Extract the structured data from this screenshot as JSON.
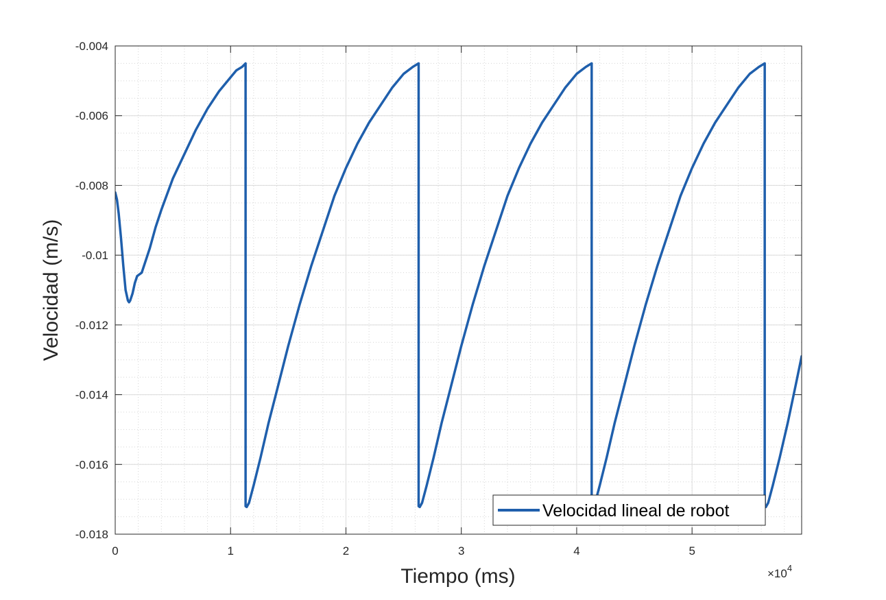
{
  "chart_data": {
    "type": "line",
    "title": "",
    "xlabel": "Tiempo (ms)",
    "ylabel": "Velocidad (m/s)",
    "x_exponent": {
      "base": "×10",
      "power": "4"
    },
    "xlim": [
      0,
      59500
    ],
    "ylim": [
      -0.018,
      -0.004
    ],
    "x_ticks": [
      0,
      10000,
      20000,
      30000,
      40000,
      50000
    ],
    "x_tick_labels": [
      "0",
      "1",
      "2",
      "3",
      "4",
      "5"
    ],
    "y_ticks": [
      -0.018,
      -0.016,
      -0.014,
      -0.012,
      -0.01,
      -0.008,
      -0.006,
      -0.004
    ],
    "y_tick_labels": [
      "-0.018",
      "-0.016",
      "-0.014",
      "-0.012",
      "-0.01",
      "-0.008",
      "-0.006",
      "-0.004"
    ],
    "grid": true,
    "minor_grid": true,
    "legend": {
      "position": "bottom-right",
      "entries": [
        "Velocidad lineal de robot"
      ]
    },
    "series": [
      {
        "name": "Velocidad lineal de robot",
        "color": "#1f5fac",
        "x": [
          0,
          150,
          300,
          500,
          700,
          900,
          1100,
          1200,
          1300,
          1500,
          1700,
          1900,
          2100,
          2300,
          2600,
          3000,
          3500,
          4000,
          5000,
          6000,
          7000,
          8000,
          9000,
          10000,
          10500,
          11000,
          11300,
          11300,
          11400,
          11600,
          12000,
          12600,
          13300,
          14000,
          15000,
          16000,
          17000,
          18000,
          19000,
          20000,
          21000,
          22000,
          23000,
          24000,
          25000,
          25800,
          26300,
          26300,
          26400,
          26600,
          27000,
          27600,
          28300,
          29000,
          30000,
          31000,
          32000,
          33000,
          34000,
          35000,
          36000,
          37000,
          38000,
          39000,
          40000,
          40800,
          41300,
          41300,
          41400,
          41600,
          42000,
          42600,
          43300,
          44000,
          45000,
          46000,
          47000,
          48000,
          49000,
          50000,
          51000,
          52000,
          53000,
          54000,
          55000,
          55800,
          56300,
          56300,
          56400,
          56600,
          57000,
          57600,
          58300,
          59000,
          59500
        ],
        "y": [
          -0.0082,
          -0.0084,
          -0.0088,
          -0.0095,
          -0.0103,
          -0.011,
          -0.0113,
          -0.01135,
          -0.0113,
          -0.0111,
          -0.0108,
          -0.0106,
          -0.01055,
          -0.0105,
          -0.0102,
          -0.0098,
          -0.0092,
          -0.0087,
          -0.0078,
          -0.0071,
          -0.0064,
          -0.0058,
          -0.0053,
          -0.0049,
          -0.0047,
          -0.0046,
          -0.0045,
          -0.0172,
          -0.01722,
          -0.0171,
          -0.0166,
          -0.0158,
          -0.0148,
          -0.0139,
          -0.0126,
          -0.0114,
          -0.0103,
          -0.0093,
          -0.0083,
          -0.0075,
          -0.0068,
          -0.0062,
          -0.0057,
          -0.0052,
          -0.0048,
          -0.0046,
          -0.0045,
          -0.0172,
          -0.01722,
          -0.0171,
          -0.0166,
          -0.0158,
          -0.0148,
          -0.0139,
          -0.0126,
          -0.0114,
          -0.0103,
          -0.0093,
          -0.0083,
          -0.0075,
          -0.0068,
          -0.0062,
          -0.0057,
          -0.0052,
          -0.0048,
          -0.0046,
          -0.0045,
          -0.0172,
          -0.01722,
          -0.0171,
          -0.0166,
          -0.0158,
          -0.0148,
          -0.0139,
          -0.0126,
          -0.0114,
          -0.0103,
          -0.0093,
          -0.0083,
          -0.0075,
          -0.0068,
          -0.0062,
          -0.0057,
          -0.0052,
          -0.0048,
          -0.0046,
          -0.0045,
          -0.0172,
          -0.01722,
          -0.0171,
          -0.0166,
          -0.0158,
          -0.0148,
          -0.0137,
          -0.0129
        ]
      }
    ]
  }
}
